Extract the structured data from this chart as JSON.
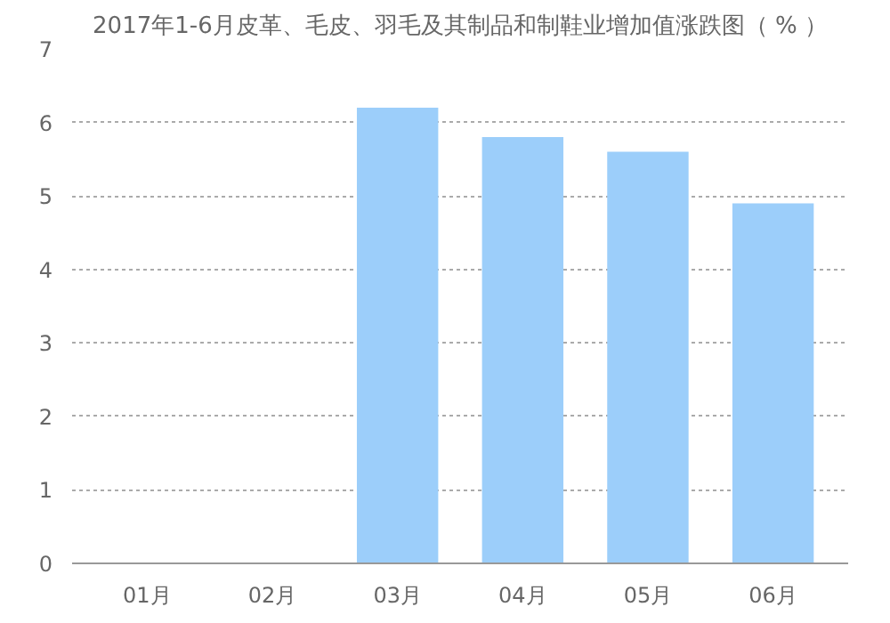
{
  "chart_data": {
    "type": "bar",
    "title": "2017年1-6月皮革、毛皮、羽毛及其制品和制鞋业增加值涨跌图（ % ）",
    "categories": [
      "01月",
      "02月",
      "03月",
      "04月",
      "05月",
      "06月"
    ],
    "values": [
      0,
      0,
      6.2,
      5.8,
      5.6,
      4.9
    ],
    "color": "#9ccefa",
    "ylim": [
      0,
      7
    ],
    "yticks": [
      0,
      1,
      2,
      3,
      4,
      5,
      6,
      7
    ],
    "grid": "y"
  }
}
